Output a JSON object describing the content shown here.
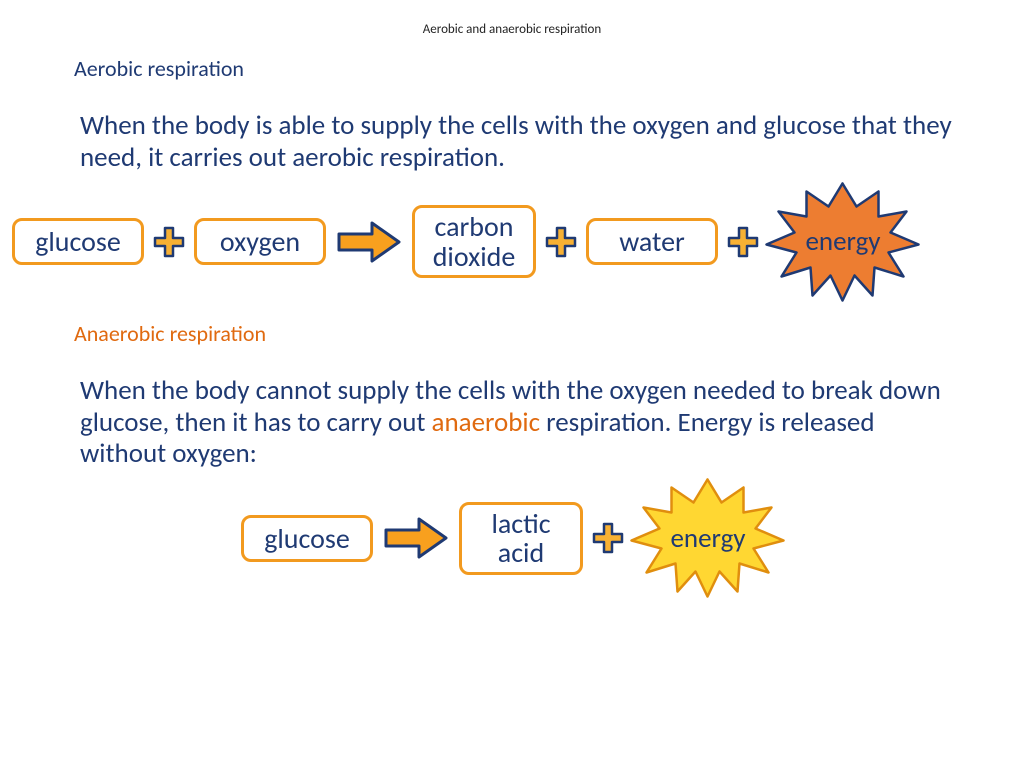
{
  "title": "Aerobic and anaerobic respiration",
  "aerobic": {
    "heading": "Aerobic respiration",
    "heading_color": "#1f3a73",
    "body": "When the body is able to supply the cells with the oxygen and glucose that they need, it carries out aerobic respiration.",
    "equation": {
      "terms": [
        {
          "label": "glucose"
        },
        {
          "label": "oxygen"
        },
        {
          "label": "carbon\ndioxide"
        },
        {
          "label": "water"
        }
      ],
      "result": "energy",
      "star_fill": "#ed7d31",
      "star_stroke": "#1f3a73"
    }
  },
  "anaerobic": {
    "heading": "Anaerobic respiration",
    "heading_color": "#e06a10",
    "body_pre": "When the body cannot supply the cells with the oxygen needed to break down glucose, then it has to carry out ",
    "body_hl": "anaerobic",
    "body_post": " respiration. Energy is released without oxygen:",
    "equation": {
      "terms": [
        {
          "label": "glucose"
        },
        {
          "label": "lactic\nacid"
        }
      ],
      "result": "energy",
      "star_fill": "#ffd732",
      "star_stroke": "#e08e0e"
    }
  },
  "style": {
    "box_border": "#f29a1f",
    "box_text": "#1f3a73",
    "plus_fill": "#f8b133",
    "plus_stroke": "#1f3a73",
    "arrow_fill": "#f8a01e",
    "arrow_stroke": "#1f3a73",
    "body_fontsize": 27,
    "heading_fontsize": 22,
    "title_fontsize": 13
  }
}
